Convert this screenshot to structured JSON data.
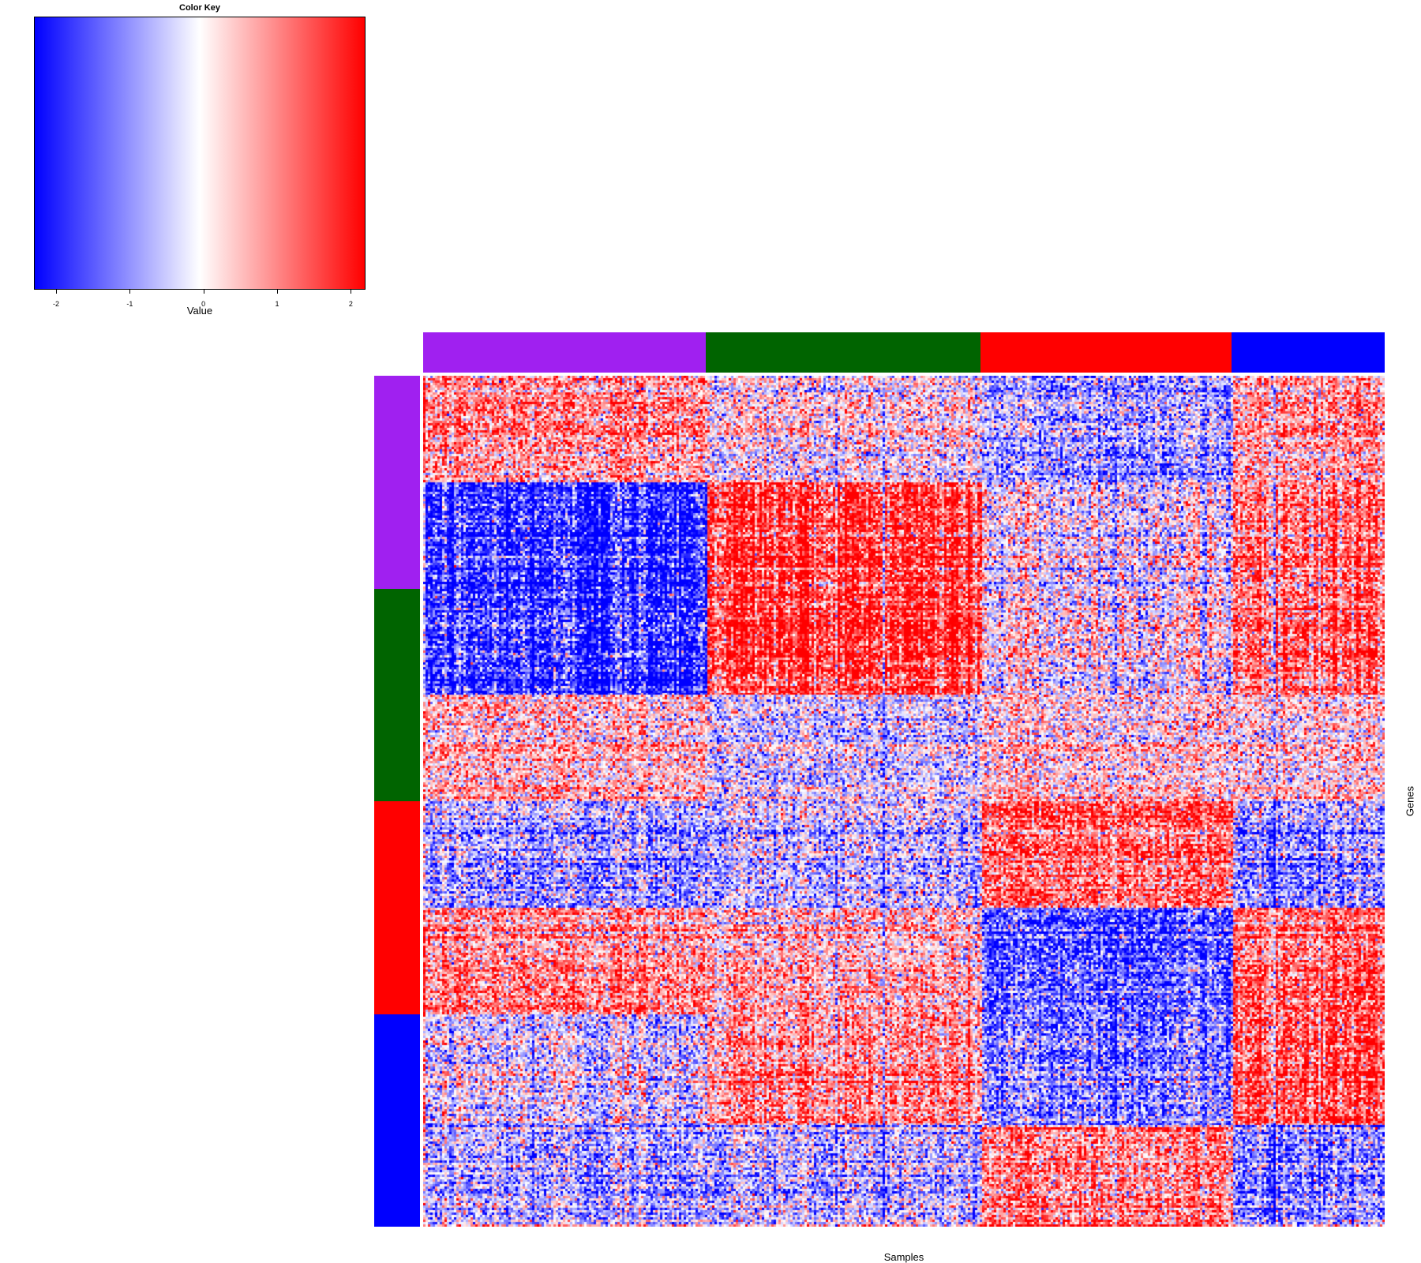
{
  "chart_data": {
    "type": "heatmap",
    "color_key": {
      "title": "Color Key",
      "xlabel": "Value",
      "ticks": [
        "-2",
        "-1",
        "0",
        "1",
        "2"
      ],
      "range": [
        -2.3,
        2.2
      ],
      "colors": [
        "#0000ff",
        "#ffffff",
        "#ff0000"
      ]
    },
    "xlabel": "Samples",
    "ylabel": "Genes",
    "column_groups": [
      {
        "color": "#a020f0",
        "fraction": 0.294
      },
      {
        "color": "#006400",
        "fraction": 0.286
      },
      {
        "color": "#ff0000",
        "fraction": 0.261
      },
      {
        "color": "#0000ff",
        "fraction": 0.159
      }
    ],
    "row_groups": [
      {
        "color": "#a020f0",
        "fraction": 0.25
      },
      {
        "color": "#006400",
        "fraction": 0.25
      },
      {
        "color": "#ff0000",
        "fraction": 0.25
      },
      {
        "color": "#0000ff",
        "fraction": 0.25
      }
    ],
    "row_blocks": [
      {
        "fraction": 0.125,
        "mean_by_column_group": [
          0.8,
          0.0,
          -0.9,
          0.7
        ],
        "contrast": 0.6
      },
      {
        "fraction": 0.25,
        "mean_by_column_group": [
          -1.8,
          1.8,
          0.0,
          1.3
        ],
        "contrast": 1.0
      },
      {
        "fraction": 0.125,
        "mean_by_column_group": [
          0.5,
          -0.3,
          0.3,
          0.3
        ],
        "contrast": 0.4
      },
      {
        "fraction": 0.125,
        "mean_by_column_group": [
          -0.8,
          -0.5,
          1.3,
          -0.9
        ],
        "contrast": 0.6
      },
      {
        "fraction": 0.125,
        "mean_by_column_group": [
          0.9,
          0.5,
          -1.5,
          1.3
        ],
        "contrast": 0.6
      },
      {
        "fraction": 0.13,
        "mean_by_column_group": [
          -0.3,
          0.9,
          -1.1,
          1.5
        ],
        "contrast": 0.8
      },
      {
        "fraction": 0.12,
        "mean_by_column_group": [
          -0.7,
          -0.6,
          1.0,
          -1.0
        ],
        "contrast": 0.7
      }
    ]
  }
}
